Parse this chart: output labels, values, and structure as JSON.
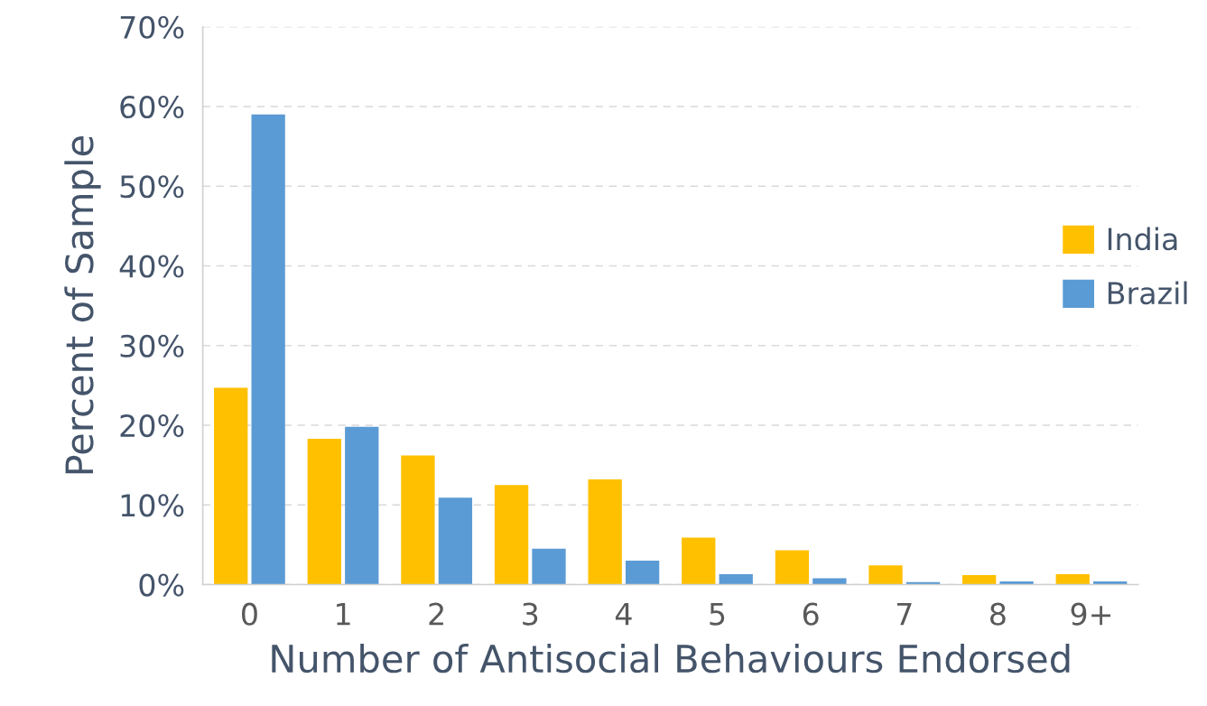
{
  "chart_data": {
    "type": "bar",
    "xlabel": "Number of Antisocial Behaviours Endorsed",
    "ylabel": "Percent of Sample",
    "categories": [
      "0",
      "1",
      "2",
      "3",
      "4",
      "5",
      "6",
      "7",
      "8",
      "9+"
    ],
    "series": [
      {
        "name": "India",
        "color": "#ffc000",
        "values": [
          24.7,
          18.3,
          16.2,
          12.5,
          13.2,
          5.9,
          4.3,
          2.4,
          1.2,
          1.3
        ]
      },
      {
        "name": "Brazil",
        "color": "#5b9bd5",
        "values": [
          59.0,
          19.8,
          10.9,
          4.5,
          3.0,
          1.3,
          0.8,
          0.3,
          0.4,
          0.4
        ]
      }
    ],
    "ylim": [
      0,
      70
    ],
    "yticks": [
      {
        "value": 0,
        "label": "0%"
      },
      {
        "value": 10,
        "label": "10%"
      },
      {
        "value": 20,
        "label": "20%"
      },
      {
        "value": 30,
        "label": "30%"
      },
      {
        "value": 40,
        "label": "40%"
      },
      {
        "value": 50,
        "label": "50%"
      },
      {
        "value": 60,
        "label": "60%"
      },
      {
        "value": 70,
        "label": "70%"
      }
    ],
    "grid": "y",
    "legend": "right"
  }
}
